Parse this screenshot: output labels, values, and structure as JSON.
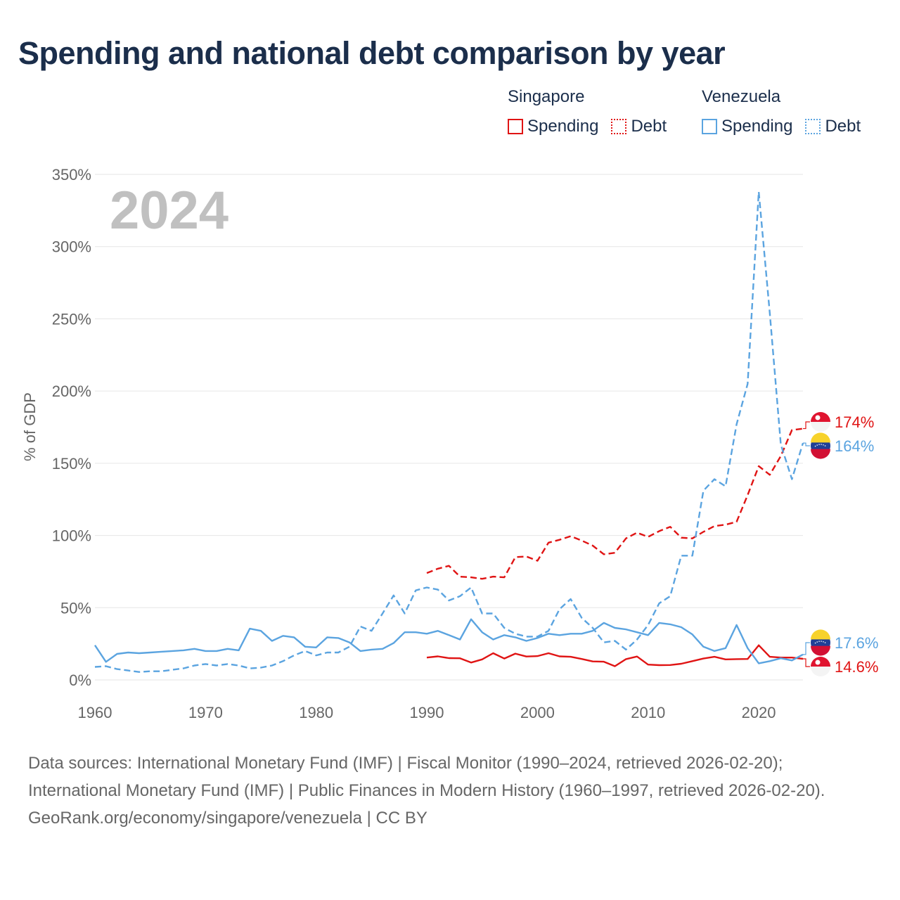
{
  "title": "Spending and national debt comparison by year",
  "legend": {
    "groups": [
      {
        "name": "Singapore",
        "items": [
          {
            "label": "Spending"
          },
          {
            "label": "Debt"
          }
        ]
      },
      {
        "name": "Venezuela",
        "items": [
          {
            "label": "Spending"
          },
          {
            "label": "Debt"
          }
        ]
      }
    ]
  },
  "colors": {
    "singapore": "#e01414",
    "venezuela": "#5ba4e0"
  },
  "year_watermark": "2024",
  "chart_data": {
    "type": "line",
    "ylabel": "% of GDP",
    "xlabel": "",
    "ylim": [
      0,
      350
    ],
    "xlim": [
      1960,
      2024
    ],
    "yticks": [
      0,
      50,
      100,
      150,
      200,
      250,
      300,
      350
    ],
    "ytick_labels": [
      "0%",
      "50%",
      "100%",
      "150%",
      "200%",
      "250%",
      "300%",
      "350%"
    ],
    "xticks": [
      1960,
      1970,
      1980,
      1990,
      2000,
      2010,
      2020
    ],
    "xtick_labels": [
      "1960",
      "1970",
      "1980",
      "1990",
      "2000",
      "2010",
      "2020"
    ],
    "grid": true,
    "series": [
      {
        "name": "Singapore Spending",
        "country": "singapore",
        "style": "solid",
        "start": 1990,
        "values": [
          15.5,
          16.3,
          15.1,
          15.0,
          12.0,
          14.2,
          18.5,
          14.8,
          18.2,
          16.2,
          16.5,
          18.5,
          16.3,
          16.0,
          14.5,
          12.8,
          12.6,
          9.5,
          14.4,
          16.2,
          10.6,
          10.2,
          10.3,
          11.2,
          13.0,
          14.8,
          16.0,
          14.2,
          14.4,
          14.5,
          24.0,
          16.0,
          15.5,
          15.5,
          14.6
        ]
      },
      {
        "name": "Singapore Debt",
        "country": "singapore",
        "style": "dashed",
        "start": 1990,
        "values": [
          74,
          77,
          79,
          71.5,
          71,
          70,
          71.5,
          71,
          85,
          85.5,
          82.5,
          95,
          97,
          99.5,
          96.5,
          93,
          87,
          88,
          98,
          102,
          99,
          103,
          106,
          98.5,
          98,
          102.5,
          106.5,
          107.5,
          109.5,
          128,
          148,
          142,
          155,
          173,
          174
        ]
      },
      {
        "name": "Venezuela Spending",
        "country": "venezuela",
        "style": "solid",
        "start": 1960,
        "values": [
          24,
          12.5,
          18,
          19,
          18.5,
          19,
          19.5,
          20,
          20.5,
          21.5,
          20,
          20,
          21.5,
          20.5,
          35.5,
          34,
          27,
          30.5,
          29.5,
          23,
          22.5,
          29.5,
          29,
          26,
          20,
          21,
          21.5,
          25.5,
          33,
          33,
          32,
          34,
          31,
          28,
          42,
          33,
          28,
          31,
          29.5,
          27,
          29,
          32,
          31,
          32,
          32,
          34,
          39.5,
          36,
          35,
          33,
          31,
          39.5,
          38.5,
          36.5,
          31.5,
          23,
          20,
          22,
          38,
          22,
          11.5,
          13,
          15,
          13.5,
          17.6
        ]
      },
      {
        "name": "Venezuela Debt",
        "country": "venezuela",
        "style": "dashed",
        "start": 1960,
        "values": [
          9,
          9.5,
          7.5,
          6.5,
          5.5,
          6,
          6,
          7,
          8,
          10,
          11,
          10,
          11,
          10,
          8,
          8.5,
          10,
          13,
          17,
          20,
          17,
          19,
          19,
          23,
          37,
          34,
          46,
          58.5,
          46,
          62,
          64,
          62.5,
          55,
          58,
          64,
          46,
          46,
          36,
          32,
          30,
          30,
          34,
          49,
          56,
          43,
          36,
          26,
          27,
          21,
          28,
          38,
          53,
          58,
          86,
          86,
          131,
          139,
          134,
          177,
          205,
          338,
          254,
          163,
          139,
          164
        ]
      }
    ],
    "end_labels": [
      {
        "series": "Singapore Debt",
        "text": "174%"
      },
      {
        "series": "Venezuela Debt",
        "text": "164%"
      },
      {
        "series": "Venezuela Spending",
        "text": "17.6%"
      },
      {
        "series": "Singapore Spending",
        "text": "14.6%"
      }
    ]
  },
  "footer": {
    "sources": "Data sources: International Monetary Fund (IMF) | Fiscal Monitor (1990–2024, retrieved 2026-02-20); International Monetary Fund (IMF) | Public Finances in Modern History (1960–1997, retrieved 2026-02-20).",
    "credit": "GeoRank.org/economy/singapore/venezuela | CC BY"
  }
}
